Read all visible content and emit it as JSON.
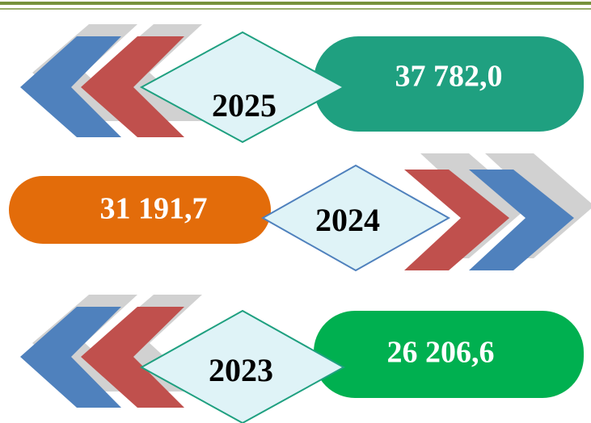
{
  "items": [
    {
      "year": "2025",
      "value": "37 782,0"
    },
    {
      "year": "2024",
      "value": "31 191,7"
    },
    {
      "year": "2023",
      "value": "26 206,6"
    }
  ]
}
